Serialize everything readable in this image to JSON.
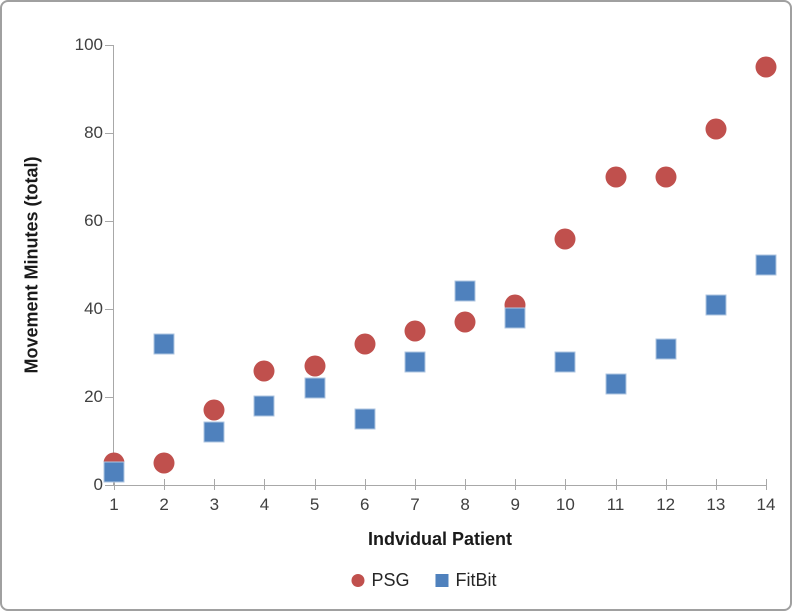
{
  "chart_data": {
    "type": "scatter",
    "title": "",
    "xlabel": "Indvidual Patient",
    "ylabel": "Movement Minutes (total)",
    "x": [
      1,
      2,
      3,
      4,
      5,
      6,
      7,
      8,
      9,
      10,
      11,
      12,
      13,
      14
    ],
    "series": [
      {
        "name": "PSG",
        "marker": "circle",
        "color": "#c0504d",
        "values": [
          5,
          5,
          17,
          26,
          27,
          32,
          35,
          37,
          41,
          56,
          70,
          70,
          81,
          95
        ]
      },
      {
        "name": "FitBit",
        "marker": "square",
        "color": "#4f81bd",
        "values": [
          3,
          32,
          12,
          18,
          22,
          15,
          28,
          44,
          38,
          28,
          23,
          31,
          41,
          50
        ]
      }
    ],
    "xticks": [
      1,
      2,
      3,
      4,
      5,
      6,
      7,
      8,
      9,
      10,
      11,
      12,
      13,
      14
    ],
    "yticks": [
      0,
      20,
      40,
      60,
      80,
      100
    ],
    "xlim": [
      1,
      14
    ],
    "ylim": [
      0,
      100
    ],
    "grid": false,
    "legend_position": "bottom",
    "axis_color": "#a8a8a8",
    "tick_label_color": "#404040"
  }
}
